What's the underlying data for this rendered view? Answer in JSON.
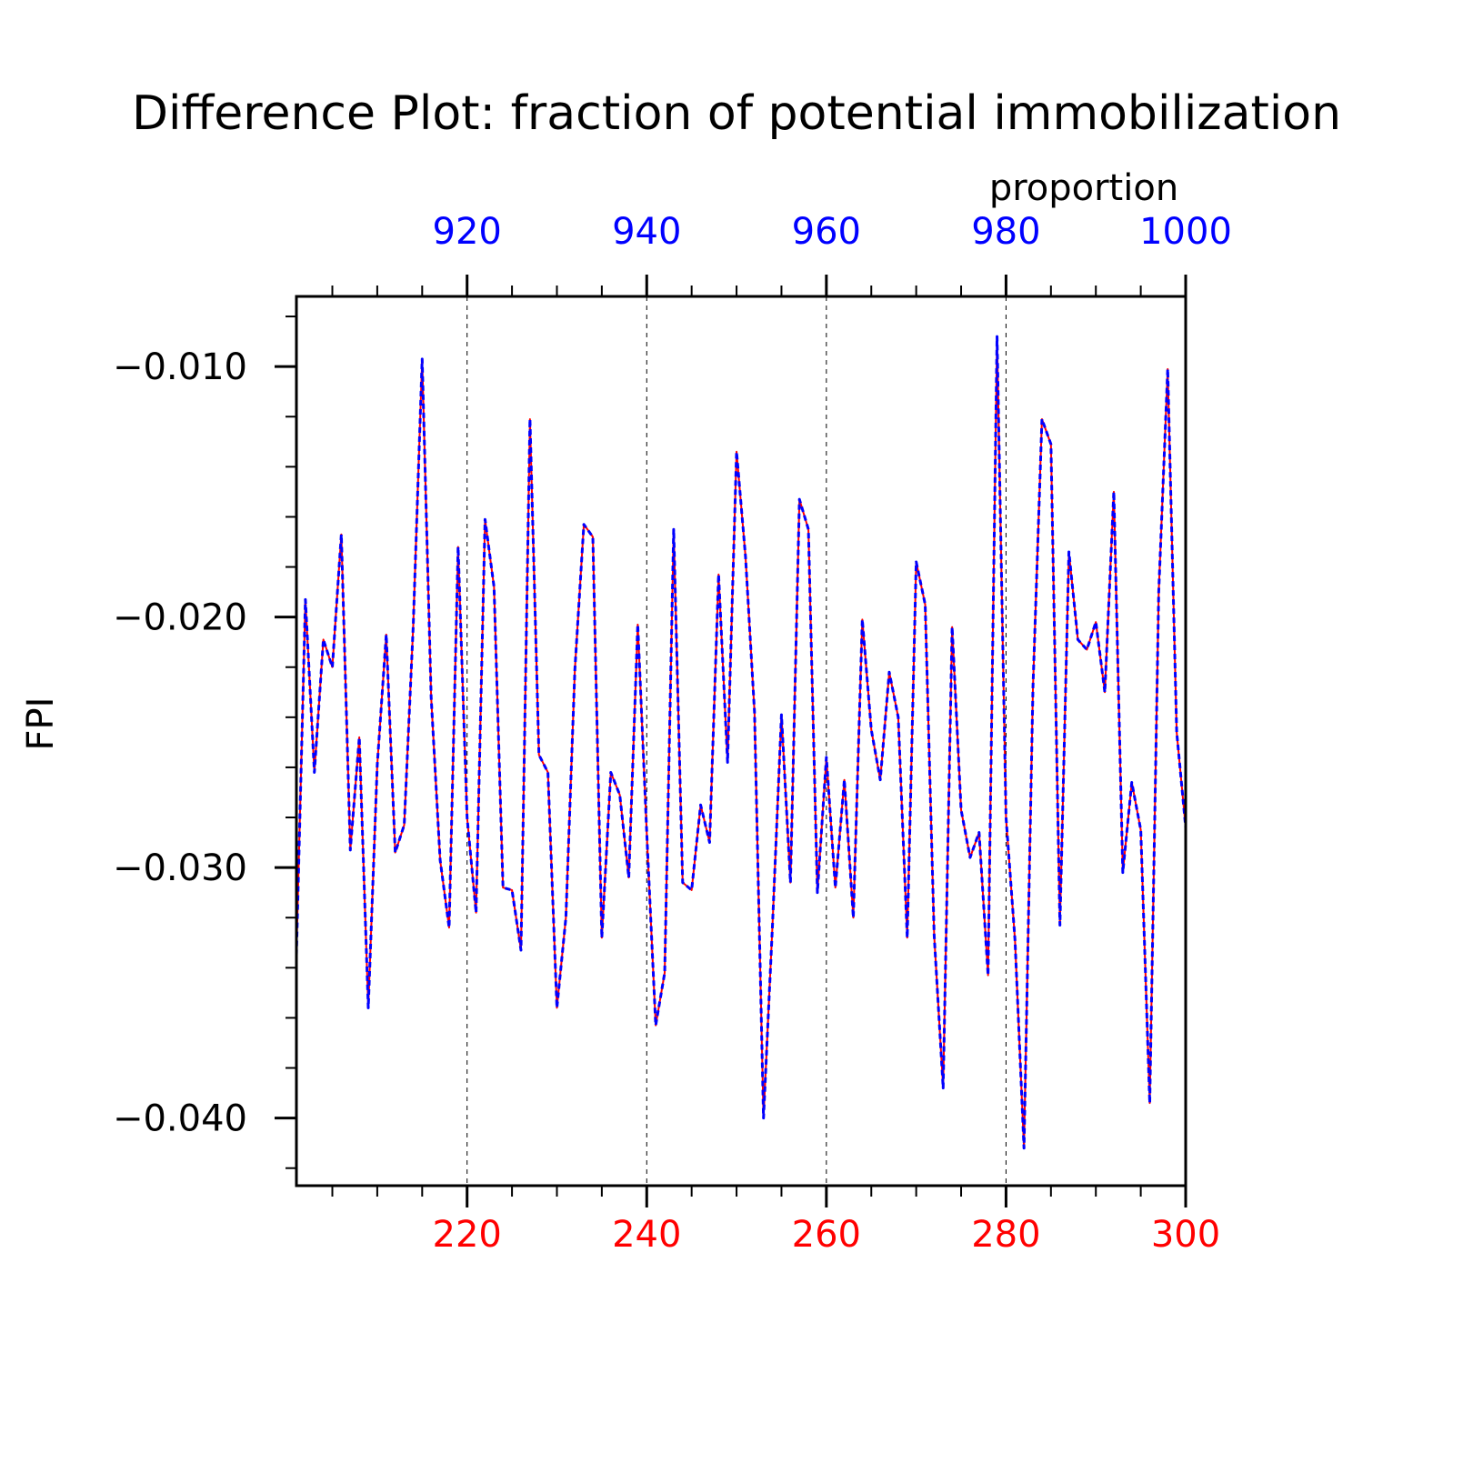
{
  "chart_data": {
    "type": "line",
    "title": "Difference Plot: fraction of potential immobilization",
    "ylabel": "FPI",
    "x2label": "proportion",
    "xlim": [
      201,
      300
    ],
    "x2lim": [
      901,
      1000
    ],
    "ylim": [
      -0.0427,
      -0.0072
    ],
    "x_ticks": [
      220,
      240,
      260,
      280,
      300
    ],
    "x2_ticks": [
      920,
      940,
      960,
      980,
      1000
    ],
    "y_ticks": [
      -0.01,
      -0.02,
      -0.03,
      -0.04
    ],
    "y_tick_labels": [
      "−0.010",
      "−0.020",
      "−0.030",
      "−0.040"
    ],
    "x_tick_labels": [
      "220",
      "240",
      "260",
      "280",
      "300"
    ],
    "x2_tick_labels": [
      "920",
      "940",
      "960",
      "980",
      "1000"
    ],
    "grid": "vertical dashed at major x ticks",
    "x": [
      201,
      202,
      203,
      204,
      205,
      206,
      207,
      208,
      209,
      210,
      211,
      212,
      213,
      214,
      215,
      216,
      217,
      218,
      219,
      220,
      221,
      222,
      223,
      224,
      225,
      226,
      227,
      228,
      229,
      230,
      231,
      232,
      233,
      234,
      235,
      236,
      237,
      238,
      239,
      240,
      241,
      242,
      243,
      244,
      245,
      246,
      247,
      248,
      249,
      250,
      251,
      252,
      253,
      254,
      255,
      256,
      257,
      258,
      259,
      260,
      261,
      262,
      263,
      264,
      265,
      266,
      267,
      268,
      269,
      270,
      271,
      272,
      273,
      274,
      275,
      276,
      277,
      278,
      279,
      280,
      281,
      282,
      283,
      284,
      285,
      286,
      287,
      288,
      289,
      290,
      291,
      292,
      293,
      294,
      295,
      296,
      297,
      298,
      299,
      300
    ],
    "series": [
      {
        "color": "#ff0000",
        "style": "solid",
        "values": [
          -0.0335,
          -0.0193,
          -0.0262,
          -0.0209,
          -0.022,
          -0.0167,
          -0.0293,
          -0.0248,
          -0.0356,
          -0.0259,
          -0.0207,
          -0.0294,
          -0.0283,
          -0.0204,
          -0.0097,
          -0.0232,
          -0.0297,
          -0.0324,
          -0.0172,
          -0.028,
          -0.0318,
          -0.0161,
          -0.0188,
          -0.0308,
          -0.0309,
          -0.0333,
          -0.0121,
          -0.0255,
          -0.0262,
          -0.0356,
          -0.032,
          -0.0221,
          -0.0163,
          -0.0168,
          -0.0328,
          -0.0262,
          -0.0271,
          -0.0304,
          -0.0203,
          -0.0286,
          -0.0363,
          -0.0342,
          -0.0165,
          -0.0306,
          -0.0309,
          -0.0275,
          -0.029,
          -0.0183,
          -0.0258,
          -0.0134,
          -0.0176,
          -0.0238,
          -0.04,
          -0.0323,
          -0.0239,
          -0.0306,
          -0.0153,
          -0.0165,
          -0.031,
          -0.0256,
          -0.0308,
          -0.0265,
          -0.032,
          -0.0201,
          -0.0245,
          -0.0265,
          -0.0222,
          -0.024,
          -0.0328,
          -0.0178,
          -0.0195,
          -0.0327,
          -0.0388,
          -0.0204,
          -0.0277,
          -0.0296,
          -0.0286,
          -0.0343,
          -0.0088,
          -0.028,
          -0.0329,
          -0.0412,
          -0.0228,
          -0.0121,
          -0.0131,
          -0.0323,
          -0.0174,
          -0.0209,
          -0.0213,
          -0.0202,
          -0.023,
          -0.015,
          -0.0302,
          -0.0266,
          -0.0285,
          -0.0394,
          -0.019,
          -0.0101,
          -0.0246,
          -0.0284
        ]
      },
      {
        "color": "#0000ff",
        "style": "dashed",
        "values": [
          -0.0335,
          -0.0193,
          -0.0262,
          -0.0209,
          -0.022,
          -0.0167,
          -0.0293,
          -0.0248,
          -0.0356,
          -0.0259,
          -0.0207,
          -0.0294,
          -0.0283,
          -0.0204,
          -0.0097,
          -0.0232,
          -0.0297,
          -0.0324,
          -0.0172,
          -0.028,
          -0.0318,
          -0.0161,
          -0.0188,
          -0.0308,
          -0.0309,
          -0.0333,
          -0.0121,
          -0.0255,
          -0.0262,
          -0.0356,
          -0.032,
          -0.0221,
          -0.0163,
          -0.0168,
          -0.0328,
          -0.0262,
          -0.0271,
          -0.0304,
          -0.0203,
          -0.0286,
          -0.0363,
          -0.0342,
          -0.0165,
          -0.0306,
          -0.0309,
          -0.0275,
          -0.029,
          -0.0183,
          -0.0258,
          -0.0134,
          -0.0176,
          -0.0238,
          -0.04,
          -0.0323,
          -0.0239,
          -0.0306,
          -0.0153,
          -0.0165,
          -0.031,
          -0.0256,
          -0.0308,
          -0.0265,
          -0.032,
          -0.0201,
          -0.0245,
          -0.0265,
          -0.0222,
          -0.024,
          -0.0328,
          -0.0178,
          -0.0195,
          -0.0327,
          -0.0388,
          -0.0204,
          -0.0277,
          -0.0296,
          -0.0286,
          -0.0343,
          -0.0088,
          -0.028,
          -0.0329,
          -0.0412,
          -0.0228,
          -0.0121,
          -0.0131,
          -0.0323,
          -0.0174,
          -0.0209,
          -0.0213,
          -0.0202,
          -0.023,
          -0.015,
          -0.0302,
          -0.0266,
          -0.0285,
          -0.0394,
          -0.019,
          -0.0101,
          -0.0246,
          -0.0284
        ]
      }
    ],
    "colors": {
      "bottom_axis_labels": "#ff0000",
      "top_axis_labels": "#0000ff",
      "axes": "#000000"
    }
  }
}
